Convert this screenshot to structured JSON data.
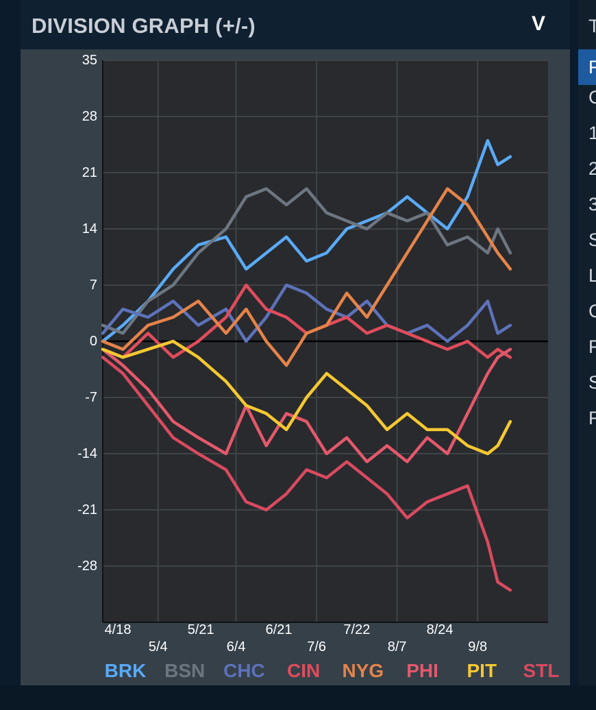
{
  "panel": {
    "title": "DIVISION GRAPH (+/-)",
    "collapse_icon": "chevron-down-icon",
    "collapse_glyph": "V"
  },
  "side_list": {
    "header_glyph": "T",
    "items": [
      "F",
      "C",
      "1",
      "2",
      "3",
      "S",
      "L",
      "C",
      "F",
      "S",
      "F"
    ],
    "selected_index": 0
  },
  "chart_data": {
    "type": "line",
    "title": "",
    "xlabel": "",
    "ylabel": "",
    "ylim": [
      -35,
      35
    ],
    "yticks": [
      35,
      28,
      21,
      14,
      7,
      0,
      -7,
      -14,
      -21,
      -28
    ],
    "xlim": [
      "4/12",
      "10/6"
    ],
    "xticks": [
      "4/18",
      "5/4",
      "5/21",
      "6/4",
      "6/21",
      "7/6",
      "7/22",
      "8/7",
      "8/24",
      "9/8"
    ],
    "grid": true,
    "legend_position": "bottom",
    "colors": {
      "background": "#282a2d",
      "grid": "#3f4447",
      "zero_line": "#000000",
      "axis_text": "#ffffff"
    },
    "series": [
      {
        "name": "BRK",
        "color": "#5aaaf5",
        "x": [
          "4/12",
          "4/20",
          "4/30",
          "5/10",
          "5/20",
          "5/31",
          "6/8",
          "6/16",
          "6/24",
          "7/2",
          "7/10",
          "7/18",
          "7/26",
          "8/3",
          "8/11",
          "8/19",
          "8/27",
          "9/4",
          "9/12",
          "9/16",
          "9/21"
        ],
        "y": [
          0,
          2,
          5,
          9,
          12,
          13,
          9,
          11,
          13,
          10,
          11,
          14,
          15,
          16,
          18,
          16,
          14,
          18,
          25,
          22,
          23
        ]
      },
      {
        "name": "BSN",
        "color": "#6d7680",
        "x": [
          "4/12",
          "4/20",
          "4/30",
          "5/10",
          "5/20",
          "5/31",
          "6/8",
          "6/16",
          "6/24",
          "7/2",
          "7/10",
          "7/18",
          "7/26",
          "8/3",
          "8/11",
          "8/19",
          "8/27",
          "9/4",
          "9/12",
          "9/16",
          "9/21"
        ],
        "y": [
          2,
          1,
          5,
          7,
          11,
          14,
          18,
          19,
          17,
          19,
          16,
          15,
          14,
          16,
          15,
          16,
          12,
          13,
          11,
          14,
          11
        ]
      },
      {
        "name": "CHC",
        "color": "#5d72ba",
        "x": [
          "4/12",
          "4/20",
          "4/30",
          "5/10",
          "5/20",
          "5/31",
          "6/8",
          "6/16",
          "6/24",
          "7/2",
          "7/10",
          "7/18",
          "7/26",
          "8/3",
          "8/11",
          "8/19",
          "8/27",
          "9/4",
          "9/12",
          "9/16",
          "9/21"
        ],
        "y": [
          1,
          4,
          3,
          5,
          2,
          4,
          0,
          3,
          7,
          6,
          4,
          3,
          5,
          2,
          1,
          2,
          0,
          2,
          5,
          1,
          2
        ]
      },
      {
        "name": "CIN",
        "color": "#e04c5c",
        "x": [
          "4/12",
          "4/20",
          "4/30",
          "5/10",
          "5/20",
          "5/31",
          "6/8",
          "6/16",
          "6/24",
          "7/2",
          "7/10",
          "7/18",
          "7/26",
          "8/3",
          "8/11",
          "8/19",
          "8/27",
          "9/4",
          "9/12",
          "9/16",
          "9/21"
        ],
        "y": [
          -1,
          -2,
          1,
          -2,
          0,
          3,
          7,
          4,
          3,
          1,
          2,
          3,
          1,
          2,
          1,
          0,
          -1,
          0,
          -2,
          -1,
          -2
        ]
      },
      {
        "name": "NYG",
        "color": "#e5834a",
        "x": [
          "4/12",
          "4/20",
          "4/30",
          "5/10",
          "5/20",
          "5/31",
          "6/8",
          "6/16",
          "6/24",
          "7/2",
          "7/10",
          "7/18",
          "7/26",
          "8/3",
          "8/11",
          "8/19",
          "8/27",
          "9/4",
          "9/12",
          "9/16",
          "9/21"
        ],
        "y": [
          0,
          -1,
          2,
          3,
          5,
          1,
          4,
          0,
          -3,
          1,
          2,
          6,
          3,
          7,
          11,
          15,
          19,
          17,
          13,
          11,
          9
        ]
      },
      {
        "name": "PHI",
        "color": "#e4586c",
        "x": [
          "4/12",
          "4/20",
          "4/30",
          "5/10",
          "5/20",
          "5/31",
          "6/8",
          "6/16",
          "6/24",
          "7/2",
          "7/10",
          "7/18",
          "7/26",
          "8/3",
          "8/11",
          "8/19",
          "8/27",
          "9/4",
          "9/12",
          "9/16",
          "9/21"
        ],
        "y": [
          -1,
          -3,
          -6,
          -10,
          -12,
          -14,
          -8,
          -13,
          -9,
          -10,
          -14,
          -12,
          -15,
          -13,
          -15,
          -12,
          -14,
          -9,
          -4,
          -2,
          -1
        ]
      },
      {
        "name": "PIT",
        "color": "#f5c832",
        "x": [
          "4/12",
          "4/20",
          "4/30",
          "5/10",
          "5/20",
          "5/31",
          "6/8",
          "6/16",
          "6/24",
          "7/2",
          "7/10",
          "7/18",
          "7/26",
          "8/3",
          "8/11",
          "8/19",
          "8/27",
          "9/4",
          "9/12",
          "9/16",
          "9/21"
        ],
        "y": [
          -1,
          -2,
          -1,
          0,
          -2,
          -5,
          -8,
          -9,
          -11,
          -7,
          -4,
          -6,
          -8,
          -11,
          -9,
          -11,
          -11,
          -13,
          -14,
          -13,
          -10
        ]
      },
      {
        "name": "STL",
        "color": "#d84a60",
        "x": [
          "4/12",
          "4/20",
          "4/30",
          "5/10",
          "5/20",
          "5/31",
          "6/8",
          "6/16",
          "6/24",
          "7/2",
          "7/10",
          "7/18",
          "7/26",
          "8/3",
          "8/11",
          "8/19",
          "8/27",
          "9/4",
          "9/12",
          "9/16",
          "9/21"
        ],
        "y": [
          -2,
          -4,
          -8,
          -12,
          -14,
          -16,
          -20,
          -21,
          -19,
          -16,
          -17,
          -15,
          -17,
          -19,
          -22,
          -20,
          -19,
          -18,
          -25,
          -30,
          -31
        ]
      }
    ]
  }
}
